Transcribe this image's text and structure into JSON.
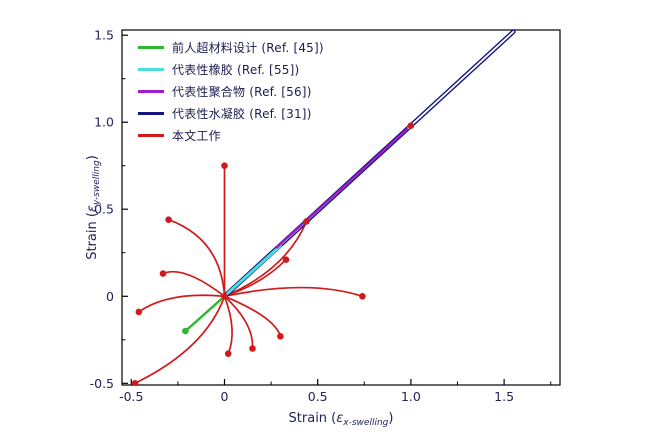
{
  "chart_data": {
    "type": "line",
    "title": "",
    "xlabel": {
      "pre": "Strain (",
      "sym": "ε",
      "sub": "x-swelling",
      "post": ")"
    },
    "ylabel": {
      "pre": "Strain (",
      "sym": "ε",
      "sub": "y-swelling",
      "post": ")"
    },
    "xlim": [
      -0.55,
      1.8
    ],
    "ylim": [
      -0.51,
      1.53
    ],
    "xticks": [
      {
        "v": -0.5,
        "label": "-0.5"
      },
      {
        "v": 0,
        "label": "0"
      },
      {
        "v": 0.5,
        "label": "0.5"
      },
      {
        "v": 1.0,
        "label": "1.0"
      },
      {
        "v": 1.5,
        "label": "1.5"
      }
    ],
    "yticks": [
      {
        "v": -0.5,
        "label": "-0.5"
      },
      {
        "v": 0,
        "label": "0"
      },
      {
        "v": 0.5,
        "label": "0.5"
      },
      {
        "v": 1.0,
        "label": "1.0"
      },
      {
        "v": 1.5,
        "label": "1.5"
      }
    ],
    "minor_step": 0.25,
    "grid": false,
    "legend_position": "top-left-inside",
    "colors": {
      "text": "#23235f",
      "frame": "#000000",
      "background": "#ffffff",
      "double_line_gap": "#ffffff"
    },
    "draw_order": [
      "this-work",
      "prior-metamaterial",
      "hydrogel",
      "rubber",
      "polymer"
    ],
    "series": [
      {
        "id": "prior-metamaterial",
        "name": "前人超材料设计 (Ref. [45])",
        "color": "#2eb82e",
        "width": 2.4,
        "paths": [
          [
            [
              -0.21,
              -0.2
            ],
            [
              0,
              0
            ]
          ]
        ],
        "markers": [
          [
            -0.21,
            -0.2
          ]
        ]
      },
      {
        "id": "rubber",
        "name": "代表性橡胶 (Ref. [55])",
        "color": "#4adede",
        "width": 3,
        "paths": [
          [
            [
              0.02,
              0.02
            ],
            [
              0.3,
              0.29
            ]
          ]
        ],
        "markers": []
      },
      {
        "id": "polymer",
        "name": "代表性聚合物 (Ref. [56])",
        "color": "#a41cc8",
        "width": 2.2,
        "paths": [
          [
            [
              0.28,
              0.28
            ],
            [
              0.98,
              0.96
            ]
          ]
        ],
        "markers": []
      },
      {
        "id": "hydrogel",
        "name": "代表性水凝胶 (Ref. [31])",
        "color": "#15157d",
        "width": 4.6,
        "double_line": true,
        "paths": [
          [
            [
              0,
              0
            ],
            [
              1.55,
              1.52
            ]
          ]
        ],
        "markers": []
      },
      {
        "id": "this-work",
        "name": "本文工作",
        "color": "#d11a1a",
        "width": 1.7,
        "paths": [
          [
            [
              0,
              0
            ],
            [
              0,
              0.75
            ]
          ],
          [
            [
              0,
              0
            ],
            [
              -0.02,
              0.33
            ],
            [
              -0.3,
              0.44
            ]
          ],
          [
            [
              0,
              0
            ],
            [
              -0.22,
              0.18
            ],
            [
              -0.33,
              0.13
            ]
          ],
          [
            [
              0,
              0
            ],
            [
              -0.3,
              0.03
            ],
            [
              -0.46,
              -0.09
            ]
          ],
          [
            [
              0,
              0
            ],
            [
              -0.1,
              -0.3
            ],
            [
              -0.48,
              -0.5
            ]
          ],
          [
            [
              0,
              0
            ],
            [
              0.07,
              -0.2
            ],
            [
              0.02,
              -0.33
            ]
          ],
          [
            [
              0,
              0
            ],
            [
              0.16,
              -0.16
            ],
            [
              0.15,
              -0.3
            ]
          ],
          [
            [
              0,
              0
            ],
            [
              0.27,
              -0.12
            ],
            [
              0.3,
              -0.23
            ]
          ],
          [
            [
              0,
              0
            ],
            [
              0.45,
              0.1
            ],
            [
              0.74,
              0.0
            ]
          ],
          [
            [
              0,
              0
            ],
            [
              0.33,
              0.15
            ],
            [
              0.44,
              0.43
            ]
          ],
          [
            [
              0,
              0
            ],
            [
              0.2,
              0.07
            ],
            [
              0.33,
              0.21
            ]
          ],
          [
            [
              0,
              0
            ],
            [
              1.0,
              0.98
            ]
          ]
        ],
        "markers": [
          [
            0,
            0.75
          ],
          [
            -0.3,
            0.44
          ],
          [
            -0.33,
            0.13
          ],
          [
            -0.46,
            -0.09
          ],
          [
            -0.48,
            -0.5
          ],
          [
            0.02,
            -0.33
          ],
          [
            0.15,
            -0.3
          ],
          [
            0.3,
            -0.23
          ],
          [
            0.74,
            0.0
          ],
          [
            0.44,
            0.43
          ],
          [
            0.33,
            0.21
          ],
          [
            1.0,
            0.98
          ],
          [
            0,
            0
          ]
        ]
      }
    ]
  }
}
